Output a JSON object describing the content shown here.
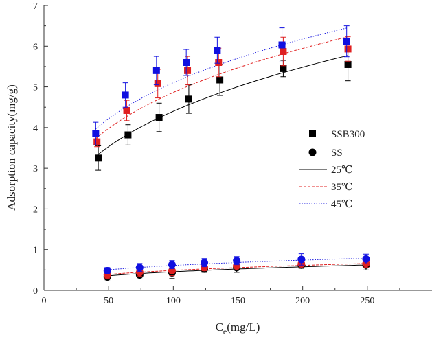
{
  "chart_data": {
    "type": "scatter",
    "title": "",
    "xlabel": "C",
    "xlabel_sub": "e",
    "xlabel_unit": "(mg/L)",
    "ylabel": "Adsorption capacity(mg/g)",
    "xlim": [
      0,
      300
    ],
    "ylim": [
      0,
      7
    ],
    "xticks": [
      0,
      50,
      100,
      150,
      200,
      250
    ],
    "yticks": [
      0,
      1,
      2,
      3,
      4,
      5,
      6,
      7
    ],
    "grid": false,
    "legend_position": "right-middle",
    "legend": [
      {
        "label": "SSB300",
        "marker": "square"
      },
      {
        "label": "SS",
        "marker": "circle"
      },
      {
        "label": "25℃",
        "line": "solid",
        "color": "#000000"
      },
      {
        "label": "35℃",
        "line": "dashed",
        "color": "#e02020"
      },
      {
        "label": "45℃",
        "line": "dotted",
        "color": "#2020e0"
      }
    ],
    "series": [
      {
        "name": "SSB300 25℃",
        "marker": "square",
        "color": "#000000",
        "x": [
          42,
          65,
          89,
          112,
          136,
          185,
          235
        ],
        "y": [
          3.25,
          3.82,
          4.25,
          4.7,
          5.17,
          5.45,
          5.55
        ],
        "err": [
          0.3,
          0.25,
          0.35,
          0.35,
          0.38,
          0.2,
          0.4
        ]
      },
      {
        "name": "SSB300 35℃",
        "marker": "square",
        "color": "#e02020",
        "x": [
          41,
          64,
          88,
          111,
          135,
          185,
          235
        ],
        "y": [
          3.65,
          4.42,
          5.08,
          5.4,
          5.6,
          5.87,
          5.93
        ],
        "err": [
          0.12,
          0.25,
          0.35,
          0.35,
          0.35,
          0.35,
          0.3
        ]
      },
      {
        "name": "SSB300 45℃",
        "marker": "square",
        "color": "#1010e0",
        "x": [
          40,
          63,
          87,
          110,
          134,
          184,
          234
        ],
        "y": [
          3.85,
          4.8,
          5.4,
          5.6,
          5.9,
          6.03,
          6.12
        ],
        "err": [
          0.28,
          0.3,
          0.35,
          0.32,
          0.32,
          0.42,
          0.38
        ]
      },
      {
        "name": "SS 25℃",
        "marker": "circle",
        "color": "#000000",
        "x": [
          49,
          74,
          99,
          124,
          149,
          199,
          249
        ],
        "y": [
          0.33,
          0.38,
          0.43,
          0.52,
          0.56,
          0.62,
          0.62
        ],
        "err": [
          0.1,
          0.1,
          0.14,
          0.08,
          0.12,
          0.08,
          0.12
        ]
      },
      {
        "name": "SS 35℃",
        "marker": "circle",
        "color": "#e02020",
        "x": [
          49,
          74,
          99,
          124,
          149,
          199,
          249
        ],
        "y": [
          0.38,
          0.44,
          0.48,
          0.56,
          0.6,
          0.65,
          0.66
        ],
        "err": [
          0.08,
          0.1,
          0.12,
          0.08,
          0.1,
          0.1,
          0.1
        ]
      },
      {
        "name": "SS 45℃",
        "marker": "circle",
        "color": "#1010e0",
        "x": [
          49,
          74,
          99,
          124,
          149,
          199,
          249
        ],
        "y": [
          0.48,
          0.56,
          0.63,
          0.68,
          0.73,
          0.76,
          0.77
        ],
        "err": [
          0.08,
          0.1,
          0.1,
          0.1,
          0.1,
          0.14,
          0.12
        ]
      }
    ],
    "fits": [
      {
        "name": "SSB300 25℃ fit",
        "style": "solid",
        "color": "#000000",
        "K": 1.02,
        "n": 3.15,
        "x_range": [
          40,
          235
        ]
      },
      {
        "name": "SSB300 35℃ fit",
        "style": "dashed",
        "color": "#e02020",
        "K": 1.28,
        "n": 3.45,
        "x_range": [
          40,
          235
        ]
      },
      {
        "name": "SSB300 45℃ fit",
        "style": "dotted",
        "color": "#2020e0",
        "K": 1.44,
        "n": 3.64,
        "x_range": [
          40,
          235
        ]
      },
      {
        "name": "SS 25℃ fit",
        "style": "solid",
        "color": "#000000",
        "K": 0.093,
        "n": 2.9,
        "x_range": [
          48,
          250
        ]
      },
      {
        "name": "SS 35℃ fit",
        "style": "dashed",
        "color": "#e02020",
        "K": 0.108,
        "n": 3.05,
        "x_range": [
          48,
          250
        ]
      },
      {
        "name": "SS 45℃ fit",
        "style": "dotted",
        "color": "#2020e0",
        "K": 0.17,
        "n": 3.6,
        "x_range": [
          48,
          250
        ]
      }
    ]
  }
}
